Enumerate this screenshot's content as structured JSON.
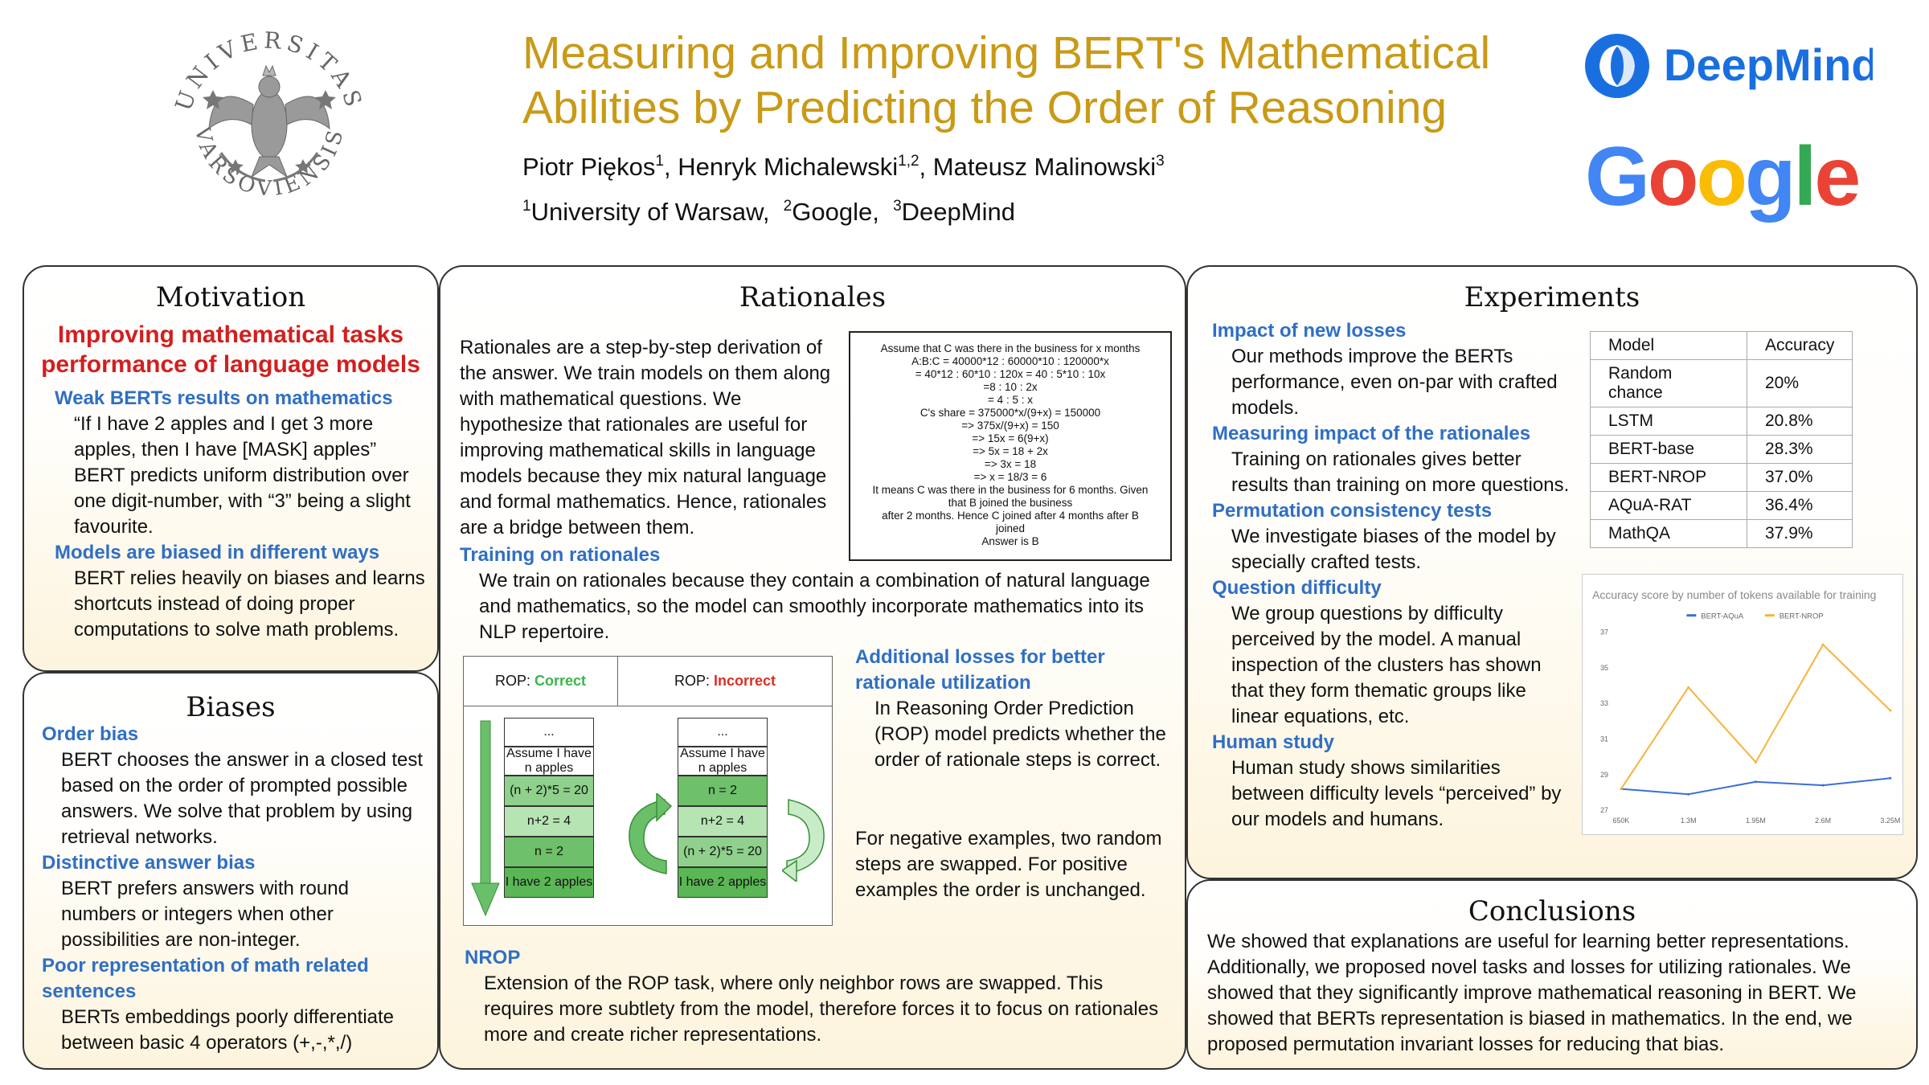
{
  "header": {
    "title_line1": "Measuring and Improving BERT's Mathematical",
    "title_line2": "Abilities by Predicting the Order of Reasoning",
    "authors": [
      {
        "name": "Piotr Piękos",
        "sup": "1"
      },
      {
        "name": "Henryk Michalewski",
        "sup": "1,2"
      },
      {
        "name": "Mateusz Malinowski",
        "sup": "3"
      }
    ],
    "affiliations": [
      {
        "sup": "1",
        "name": "University of Warsaw"
      },
      {
        "sup": "2",
        "name": "Google"
      },
      {
        "sup": "3",
        "name": "DeepMind"
      }
    ],
    "crest_text_top": "UNIVERSITAS",
    "crest_text_bottom": "VARSOVIENSIS",
    "deepmind_logo_text": "DeepMind",
    "google_logo_letters": [
      "G",
      "o",
      "o",
      "g",
      "l",
      "e"
    ],
    "google_colors": [
      "#4285F4",
      "#EA4335",
      "#FBBC05",
      "#4285F4",
      "#34A853",
      "#EA4335"
    ],
    "deepmind_color": "#1a6fe0"
  },
  "motivation": {
    "heading": "Motivation",
    "highlight": "Improving mathematical tasks performance of language models",
    "sections": [
      {
        "title": "Weak BERTs results on mathematics",
        "text": "“If I have 2 apples and I get 3 more apples, then I have [MASK] apples” BERT predicts uniform distribution over one digit-number, with “3” being a slight favourite."
      },
      {
        "title": "Models are biased in different ways",
        "text": "BERT relies heavily on biases and learns shortcuts instead of doing proper computations to solve math problems."
      }
    ]
  },
  "biases": {
    "heading": "Biases",
    "sections": [
      {
        "title": "Order bias",
        "text": "BERT chooses the answer in a closed test based on the order of prompted possible answers. We solve that problem by using retrieval networks."
      },
      {
        "title": "Distinctive answer bias",
        "text": "BERT prefers answers with round numbers or integers when other possibilities are non-integer."
      },
      {
        "title": "Poor representation of math related sentences",
        "text": "BERTs embeddings poorly  differentiate between basic 4 operators (+,-,*,/)"
      }
    ]
  },
  "rationales": {
    "heading": "Rationales",
    "intro": "Rationales are a step-by-step derivation of the answer. We train models on them along with mathematical questions. We hypothesize that rationales are useful for improving mathematical skills in language models because they mix natural language and formal mathematics. Hence, rationales are a bridge between them.",
    "example_lines": [
      "Assume that C was there in the business for x months",
      "A:B:C = 40000*12 : 60000*10 : 120000*x",
      "= 40*12 : 60*10 : 120x = 40 : 5*10 : 10x",
      "=8 : 10 : 2x",
      "= 4 : 5 : x",
      "C's share = 375000*x/(9+x) = 150000",
      "=> 375x/(9+x) = 150",
      "=> 15x = 6(9+x)",
      "=> 5x = 18 + 2x",
      "=> 3x = 18",
      "=> x = 18/3 = 6",
      "It means C was there in the business for 6 months. Given",
      "that B joined the business",
      "after 2 months. Hence C joined after 4 months after B",
      "joined",
      "Answer is B"
    ],
    "training_title": "Training on rationales",
    "training_text": "We train on rationales because they contain a combination of natural language and mathematics, so the model can smoothly incorporate mathematics into its NLP repertoire.",
    "rop_figure": {
      "correct_prefix": "ROP: ",
      "correct_word": "Correct",
      "incorrect_prefix": "ROP: ",
      "incorrect_word": "Incorrect",
      "correct_color": "#3cb44b",
      "incorrect_color": "#d93025",
      "correct_steps": [
        "...",
        "Assume I have n apples",
        "(n + 2)*5 = 20",
        "n+2 = 4",
        "n = 2",
        "I have 2 apples"
      ],
      "incorrect_steps": [
        "...",
        "Assume I have n apples",
        "n = 2",
        "n+2 = 4",
        "(n + 2)*5 = 20",
        "I have 2 apples"
      ]
    },
    "losses_title": "Additional losses for better rationale utilization",
    "losses_text": "In Reasoning Order Prediction (ROP) model predicts whether the order of rationale steps is correct.",
    "negative_text": "For negative examples, two random steps are swapped. For positive examples the order is unchanged.",
    "nrop_title": "NROP",
    "nrop_text": "Extension of the ROP task, where only neighbor rows are swapped. This requires more subtlety from the model, therefore forces it to focus on rationales more and create richer representations."
  },
  "experiments": {
    "heading": "Experiments",
    "sections": [
      {
        "title": "Impact of new losses",
        "text": "Our methods improve the BERTs performance, even on-par with  crafted models."
      },
      {
        "title": "Measuring impact of the rationales",
        "text": "Training on rationales gives better results than training on more questions."
      },
      {
        "title": "Permutation consistency tests",
        "text": "We investigate biases of the model by specially crafted tests."
      },
      {
        "title": "Question difficulty",
        "text": "We group questions by difficulty perceived by the model. A manual inspection of the clusters has shown that they form thematic groups like linear equations, etc."
      },
      {
        "title": "Human study",
        "text": "Human study shows similarities between difficulty levels “perceived” by our models and humans."
      }
    ],
    "table": {
      "headers": [
        "Model",
        "Accuracy"
      ],
      "rows": [
        [
          "Random chance",
          "20%"
        ],
        [
          "LSTM",
          "20.8%"
        ],
        [
          "BERT-base",
          "28.3%"
        ],
        [
          "BERT-NROP",
          "37.0%"
        ],
        [
          "AQuA-RAT",
          "36.4%"
        ],
        [
          "MathQA",
          "37.9%"
        ]
      ]
    }
  },
  "chart_data": {
    "type": "line",
    "title": "Accuracy score by number of tokens available for training",
    "xlabel": "",
    "ylabel": "",
    "categories": [
      "650K",
      "1.3M",
      "1.95M",
      "2.6M",
      "3.25M"
    ],
    "series": [
      {
        "name": "BERT-AQuA",
        "color": "#3b6fd6",
        "values": [
          28.2,
          27.9,
          28.6,
          28.4,
          28.8
        ]
      },
      {
        "name": "BERT-NROP",
        "color": "#f4b43a",
        "values": [
          28.2,
          33.9,
          29.7,
          36.3,
          32.6
        ]
      }
    ],
    "yticks": [
      "27",
      "29",
      "31",
      "33",
      "35",
      "37"
    ],
    "ylim": [
      27,
      37
    ],
    "legend": "top",
    "grid": false
  },
  "conclusions": {
    "heading": "Conclusions",
    "text": "We showed that explanations are useful for learning better representations. Additionally, we proposed novel tasks and losses for utilizing rationales. We showed that they significantly improve mathematical reasoning in BERT. We showed that BERTs representation is biased in mathematics. In the end, we proposed permutation invariant losses for reducing that bias."
  }
}
